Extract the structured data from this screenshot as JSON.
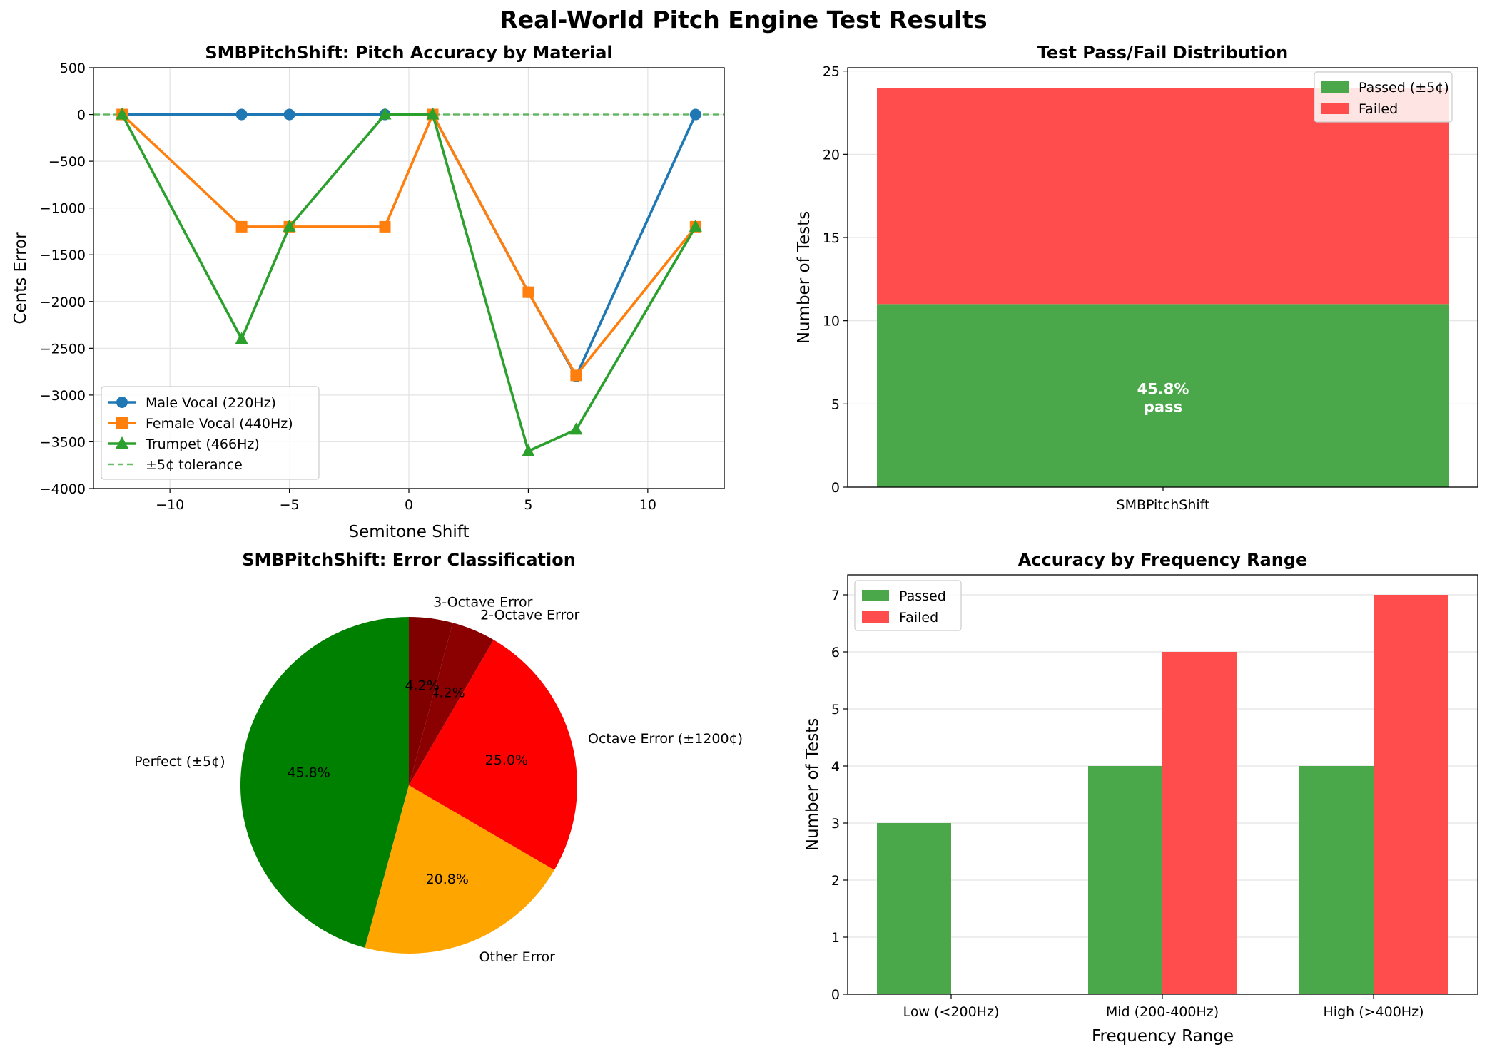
{
  "figure": {
    "title": "Real-World Pitch Engine Test Results"
  },
  "chart_data": [
    {
      "type": "line",
      "title": "SMBPitchShift: Pitch Accuracy by Material",
      "xlabel": "Semitone Shift",
      "ylabel": "Cents Error",
      "xlim": [
        -13.2,
        13.2
      ],
      "ylim": [
        -4000,
        500
      ],
      "xticks": [
        -10,
        -5,
        0,
        5,
        10
      ],
      "xtick_labels": [
        "−10",
        "−5",
        "0",
        "5",
        "10"
      ],
      "yticks": [
        500,
        0,
        -500,
        -1000,
        -1500,
        -2000,
        -2500,
        -3000,
        -3500,
        -4000
      ],
      "ytick_labels": [
        "500",
        "0",
        "−500",
        "−1000",
        "−1500",
        "−2000",
        "−2500",
        "−3000",
        "−3500",
        "−4000"
      ],
      "grid": true,
      "legend_position": "lower-left",
      "x": [
        -12,
        -7,
        -5,
        -1,
        1,
        5,
        7,
        12
      ],
      "series": [
        {
          "name": "Male Vocal (220Hz)",
          "color": "#1f77b4",
          "marker": "circle",
          "values": [
            0,
            0,
            0,
            0,
            0,
            -1900,
            -2800,
            0
          ]
        },
        {
          "name": "Female Vocal (440Hz)",
          "color": "#ff7f0e",
          "marker": "square",
          "values": [
            0,
            -1200,
            -1200,
            -1200,
            0,
            -1900,
            -2790,
            -1200
          ]
        },
        {
          "name": "Trumpet (466Hz)",
          "color": "#2ca02c",
          "marker": "triangle",
          "values": [
            0,
            -2400,
            -1200,
            0,
            0,
            -3600,
            -3370,
            -1200
          ]
        }
      ],
      "reference_line": {
        "name": "±5¢ tolerance",
        "value": 0,
        "color": "#2ca02c"
      }
    },
    {
      "type": "bar",
      "stacked": true,
      "title": "Test Pass/Fail Distribution",
      "xlabel": "",
      "ylabel": "Number of Tests",
      "ylim": [
        0,
        25.2
      ],
      "yticks": [
        0,
        5,
        10,
        15,
        20,
        25
      ],
      "categories": [
        "SMBPitchShift"
      ],
      "grid": true,
      "legend_position": "upper-right",
      "series": [
        {
          "name": "Passed (±5¢)",
          "color": "#4aa84a",
          "values": [
            11
          ]
        },
        {
          "name": "Failed",
          "color": "#ff4d4d",
          "values": [
            13
          ]
        }
      ],
      "annotation": {
        "line1": "45.8%",
        "line2": "pass"
      }
    },
    {
      "type": "pie",
      "title": "SMBPitchShift: Error Classification",
      "slices": [
        {
          "label": "Perfect (±5¢)",
          "value": 45.8,
          "pct_label": "45.8%",
          "color": "#008000"
        },
        {
          "label": "Other Error",
          "value": 20.8,
          "pct_label": "20.8%",
          "color": "#ffa500"
        },
        {
          "label": "Octave Error (±1200¢)",
          "value": 25.0,
          "pct_label": "25.0%",
          "color": "#ff0000"
        },
        {
          "label": "2-Octave Error",
          "value": 4.2,
          "pct_label": "4.2%",
          "color": "#8b0000"
        },
        {
          "label": "3-Octave Error",
          "value": 4.2,
          "pct_label": "4.2%",
          "color": "#800000"
        }
      ]
    },
    {
      "type": "bar",
      "title": "Accuracy by Frequency Range",
      "xlabel": "Frequency Range",
      "ylabel": "Number of Tests",
      "ylim": [
        0,
        7.35
      ],
      "yticks": [
        0,
        1,
        2,
        3,
        4,
        5,
        6,
        7
      ],
      "categories": [
        "Low (<200Hz)",
        "Mid (200-400Hz)",
        "High (>400Hz)"
      ],
      "grid": true,
      "legend_position": "upper-left",
      "series": [
        {
          "name": "Passed",
          "color": "#4aa84a",
          "values": [
            3,
            4,
            4
          ]
        },
        {
          "name": "Failed",
          "color": "#ff4d4d",
          "values": [
            0,
            6,
            7
          ]
        }
      ]
    }
  ]
}
